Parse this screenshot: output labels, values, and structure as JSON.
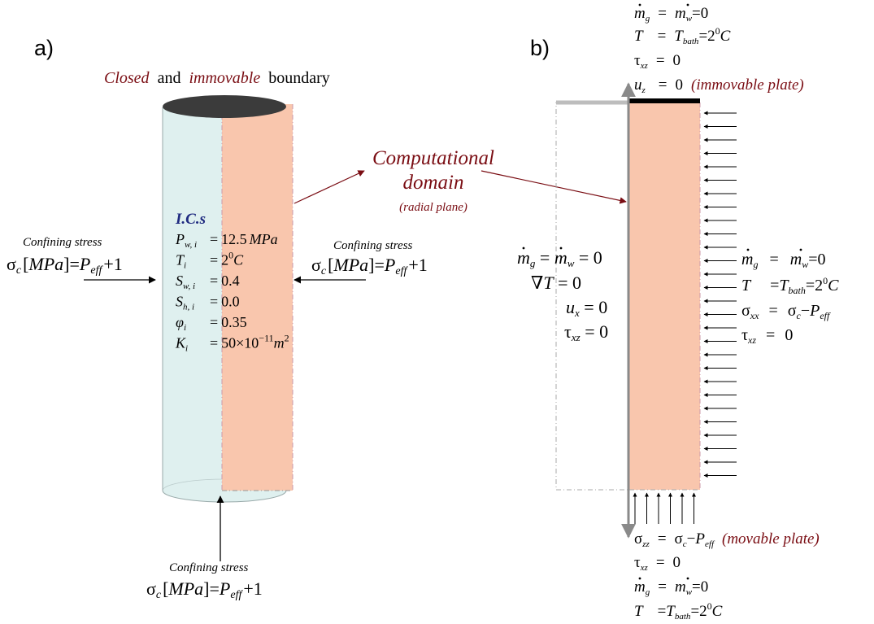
{
  "panel_a": {
    "label": "a)",
    "boundary": {
      "closed": "Closed",
      "and": "and",
      "immovable": "immovable",
      "word": "boundary"
    },
    "ics_title": "I.C.s",
    "ics": [
      {
        "sym": "P",
        "sub": "w, i",
        "eq": "=",
        "val": "12.5",
        "unit": "MPa"
      },
      {
        "sym": "T",
        "sub": "i",
        "eq": "=",
        "val": "2",
        "sup": "0",
        "unit": "C"
      },
      {
        "sym": "S",
        "sub": "w, i",
        "eq": "=",
        "val": "0.4"
      },
      {
        "sym": "S",
        "sub": "h, i",
        "eq": "=",
        "val": "0.0"
      },
      {
        "sym": "φ",
        "sub": "i",
        "eq": "=",
        "val": "0.35"
      },
      {
        "sym": "K",
        "sub": "i",
        "eq": "=",
        "val": "50×10",
        "sup": "−11",
        "unit": "m",
        "unit_sup": "2"
      }
    ],
    "confining": {
      "label": "Confining stress",
      "sigma": "σ",
      "sub_c": "c",
      "bracket_open": "[",
      "unit": "MPa",
      "bracket_close": "]",
      "eq": "=",
      "p": "P",
      "sub_eff": "eff",
      "plus_one": "+1"
    }
  },
  "middle": {
    "title_line1": "Computational",
    "title_line2": "domain",
    "note": "(radial plane)"
  },
  "panel_b": {
    "label": "b)",
    "plate_immovable": "(immovable plate)",
    "plate_movable": "(movable plate)",
    "sym": {
      "m": "m",
      "g": "g",
      "w": "w",
      "T": "T",
      "bath": "bath",
      "tau": "τ",
      "xz": "xz",
      "u": "u",
      "z": "z",
      "x": "x",
      "sigma": "σ",
      "c": "c",
      "P": "P",
      "eff": "eff",
      "xx": "xx",
      "zz": "zz",
      "nabla": "∇",
      "eq": "=",
      "zero": "0",
      "minus": "−",
      "two": "2",
      "deg": "0",
      "C": "C"
    }
  },
  "colors": {
    "cyl_left": "#dff0ef",
    "domain_fill": "#f9c6ad",
    "top_cap": "#3b3b3b",
    "dark_red": "#7a0d13",
    "ics_blue": "#1f2a80",
    "axis_gray": "#8a8a8a"
  }
}
